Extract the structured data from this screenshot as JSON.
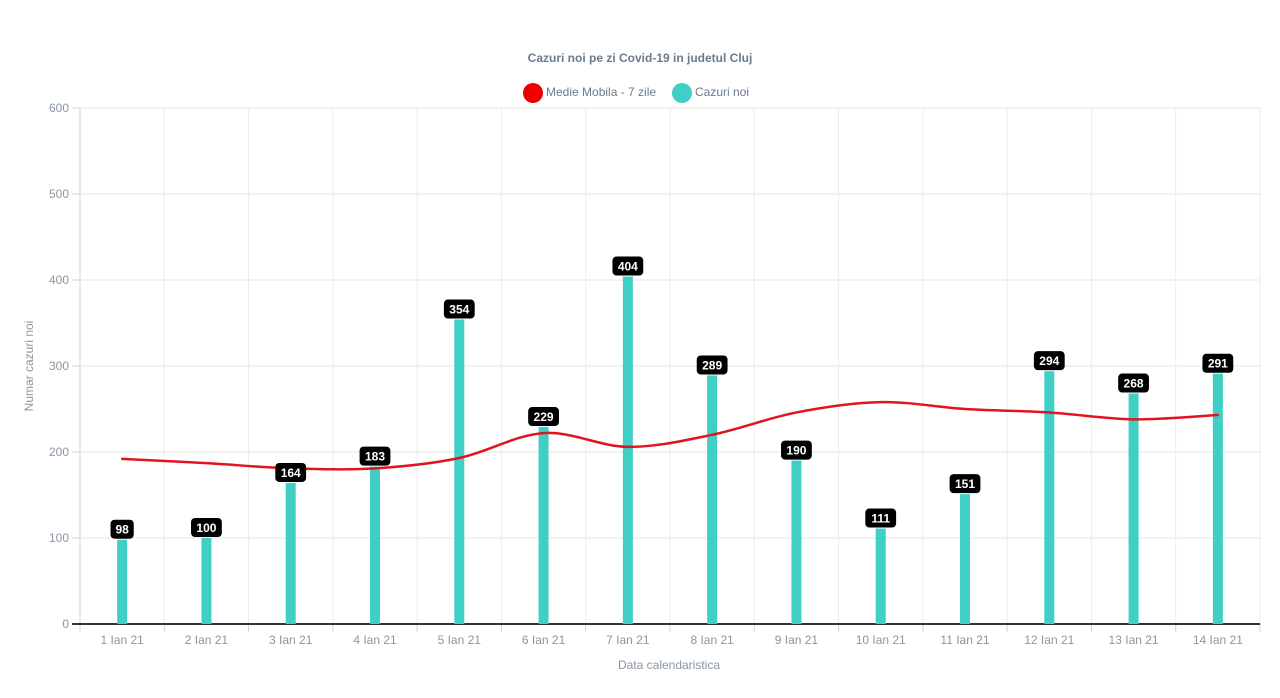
{
  "chart_data": {
    "type": "bar",
    "title": "Cazuri noi pe zi Covid-19 in judetul Cluj",
    "xlabel": "Data calendaristica",
    "ylabel": "Numar cazuri noi",
    "ylim": [
      0,
      600
    ],
    "yticks": [
      0,
      100,
      200,
      300,
      400,
      500,
      600
    ],
    "grid": true,
    "legend_position": "top-center",
    "categories": [
      "1 Ian 21",
      "2 Ian 21",
      "3 Ian 21",
      "4 Ian 21",
      "5 Ian 21",
      "6 Ian 21",
      "7 Ian 21",
      "8 Ian 21",
      "9 Ian 21",
      "10 Ian 21",
      "11 Ian 21",
      "12 Ian 21",
      "13 Ian 21",
      "14 Ian 21"
    ],
    "series": [
      {
        "name": "Medie Mobila - 7 zile",
        "type": "line",
        "color": "#e0141e",
        "values": [
          192,
          187,
          181,
          181,
          193,
          222,
          206,
          220,
          246,
          258,
          250,
          246,
          238,
          243
        ]
      },
      {
        "name": "Cazuri noi",
        "type": "bar",
        "color": "#40cfc5",
        "values": [
          98,
          100,
          164,
          183,
          354,
          229,
          404,
          289,
          190,
          111,
          151,
          294,
          268,
          291
        ]
      }
    ]
  }
}
